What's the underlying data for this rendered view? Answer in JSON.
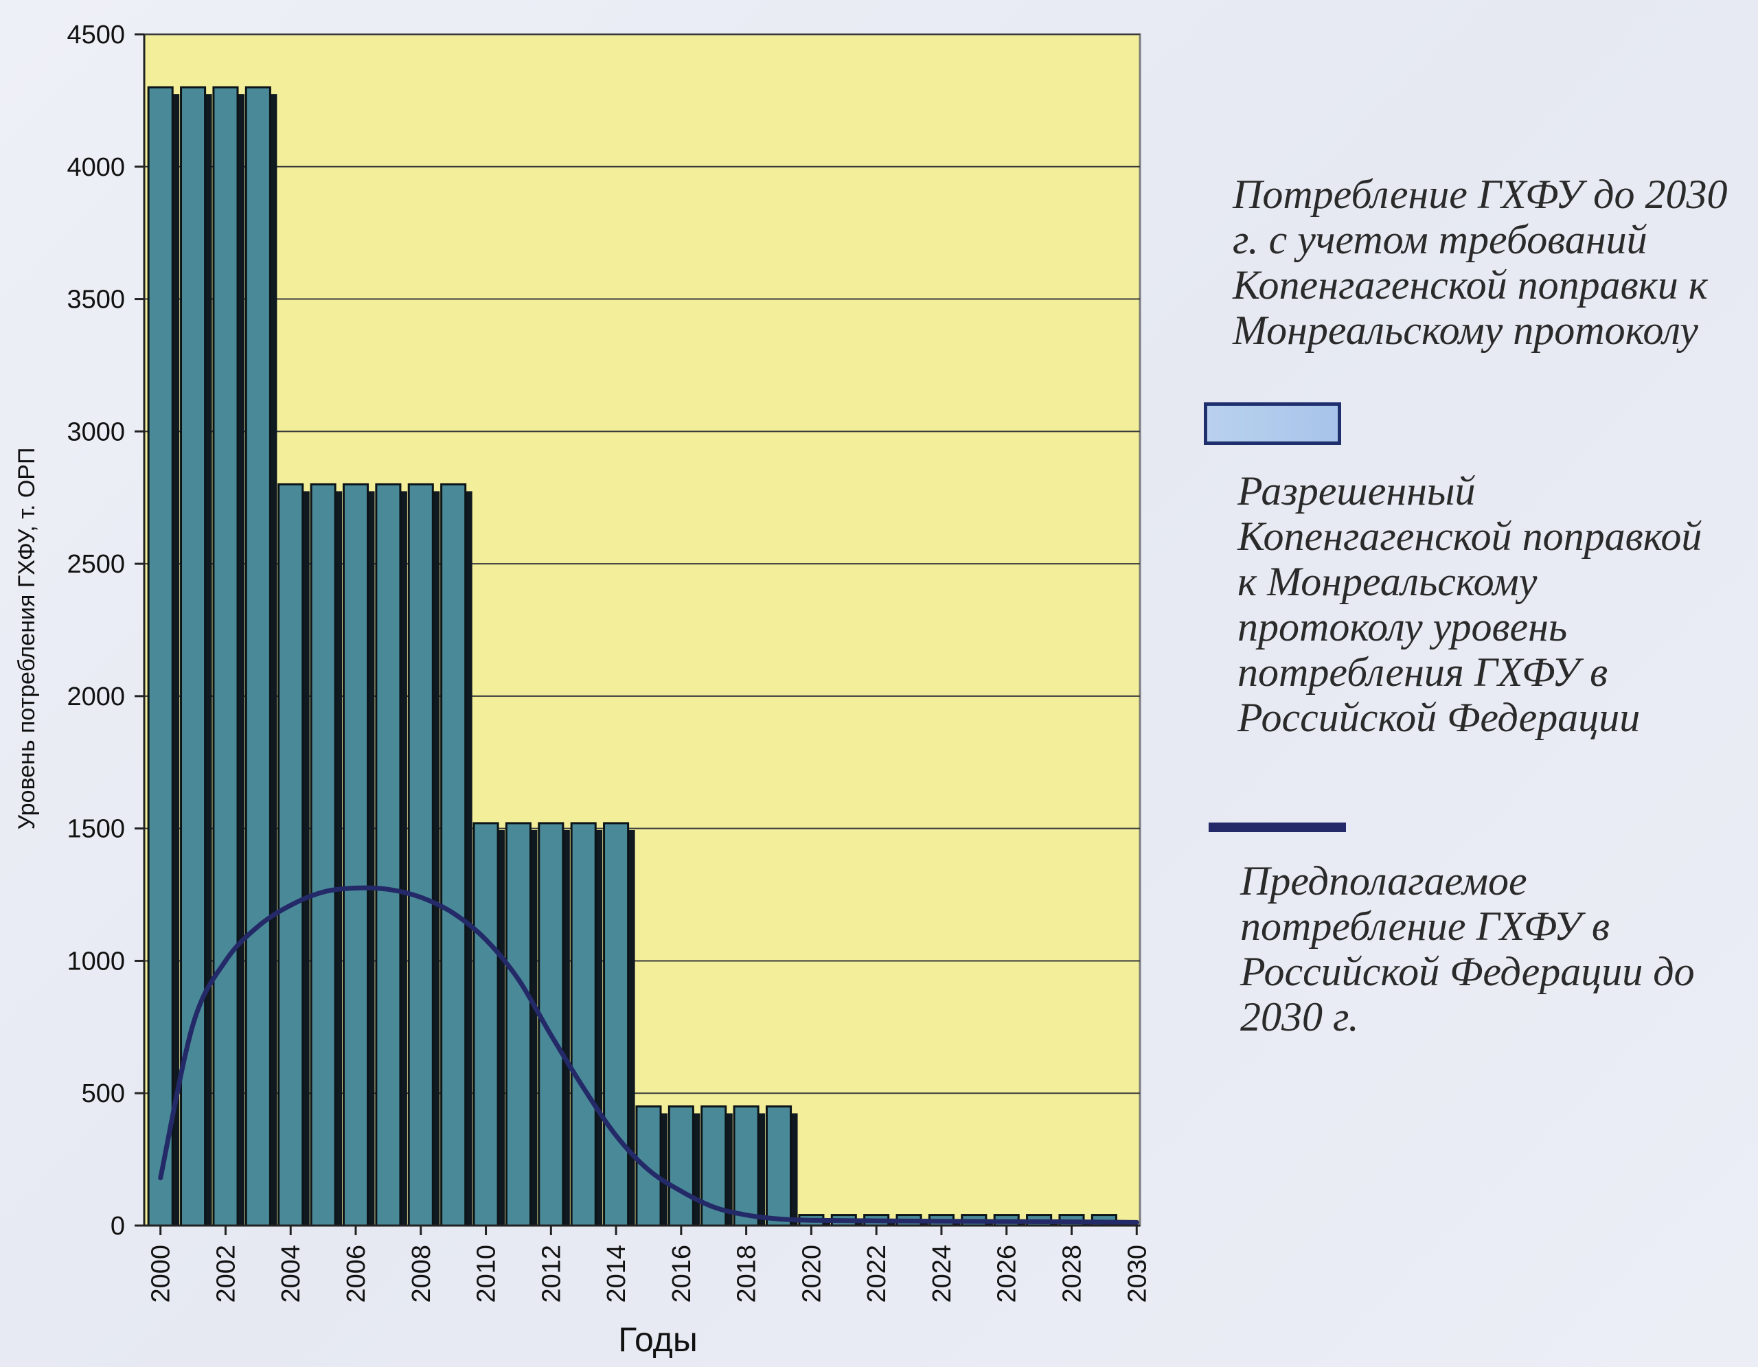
{
  "chart_data": {
    "type": "bar",
    "title": "",
    "xlabel": "Годы",
    "ylabel": "Уровень потребления ГХФУ, т. ОРП",
    "ylim": [
      0,
      4500
    ],
    "yticks": [
      0,
      500,
      1000,
      1500,
      2000,
      2500,
      3000,
      3500,
      4000,
      4500
    ],
    "xticks": [
      "2000",
      "2002",
      "2004",
      "2006",
      "2008",
      "2010",
      "2012",
      "2014",
      "2016",
      "2018",
      "2020",
      "2022",
      "2024",
      "2026",
      "2028",
      "2030"
    ],
    "categories": [
      "2000",
      "2001",
      "2002",
      "2003",
      "2004",
      "2005",
      "2006",
      "2007",
      "2008",
      "2009",
      "2010",
      "2011",
      "2012",
      "2013",
      "2014",
      "2015",
      "2016",
      "2017",
      "2018",
      "2019",
      "2020",
      "2021",
      "2022",
      "2023",
      "2024",
      "2025",
      "2026",
      "2027",
      "2028",
      "2029",
      "2030"
    ],
    "grid": true,
    "legend_position": "right",
    "series": [
      {
        "name": "Разрешенный Копенгагенской поправкой к Монреальскому протоколу уровень потребления ГХФУ в Российской Федерации",
        "type": "bar",
        "color": "#4a8a98",
        "values": [
          4300,
          4300,
          4300,
          4300,
          2800,
          2800,
          2800,
          2800,
          2800,
          2800,
          1520,
          1520,
          1520,
          1520,
          1520,
          450,
          450,
          450,
          450,
          450,
          40,
          40,
          40,
          40,
          40,
          40,
          40,
          40,
          40,
          40,
          0
        ]
      },
      {
        "name": "Предполагаемое потребление ГХФУ в Российской Федерации до 2030 г.",
        "type": "line",
        "color": "#242a68",
        "x": [
          2000,
          2001,
          2002,
          2003,
          2004,
          2005,
          2006,
          2007,
          2008,
          2009,
          2010,
          2011,
          2012,
          2013,
          2014,
          2015,
          2016,
          2017,
          2018,
          2019,
          2020,
          2022,
          2024,
          2026,
          2028,
          2030
        ],
        "values": [
          180,
          760,
          1000,
          1130,
          1210,
          1260,
          1275,
          1270,
          1240,
          1180,
          1080,
          930,
          720,
          520,
          340,
          210,
          130,
          70,
          40,
          25,
          20,
          18,
          16,
          15,
          14,
          12
        ]
      }
    ],
    "legend_title": "Потребление ГХФУ до 2030 г. с учетом требований Копенгагенской поправки к Монреальскому протоколу"
  },
  "legend": {
    "title": "Потребление ГХФУ до 2030 г. с учетом требований Копенгагенской поправки к Монреальскому протоколу",
    "bar_label": "Разрешенный Копенгагенской поправкой к Монреальскому протоколу уровень потребления ГХФУ в Российской Федерации",
    "line_label": "Предполагаемое потребление ГХФУ в Российской Федерации до 2030 г."
  },
  "colors": {
    "plot_background": "#f2ee9a",
    "bar_fill": "#4a8a98",
    "bar_shadow": "#101820",
    "line": "#242a68",
    "gridline": "#3a3a3a"
  }
}
